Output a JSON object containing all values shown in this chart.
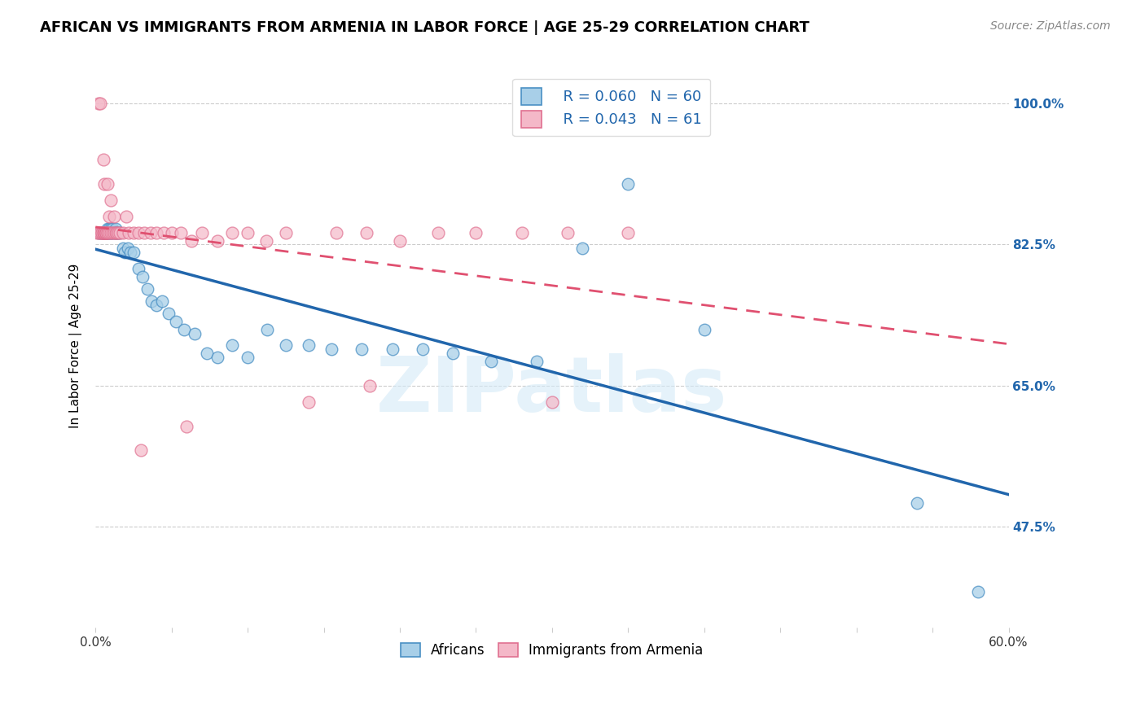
{
  "title": "AFRICAN VS IMMIGRANTS FROM ARMENIA IN LABOR FORCE | AGE 25-29 CORRELATION CHART",
  "source": "Source: ZipAtlas.com",
  "ylabel": "In Labor Force | Age 25-29",
  "xmin": 0.0,
  "xmax": 0.6,
  "ymin": 0.35,
  "ymax": 1.05,
  "yticks": [
    0.475,
    0.5,
    0.525,
    0.55,
    0.575,
    0.6,
    0.625,
    0.65,
    0.675,
    0.7,
    0.725,
    0.75,
    0.775,
    0.8,
    0.825,
    0.85,
    0.875,
    0.9,
    0.925,
    0.95,
    0.975,
    1.0
  ],
  "ytick_labels_right": [
    "47.5%",
    "",
    "",
    "",
    "",
    "",
    "",
    "65.0%",
    "",
    "",
    "",
    "",
    "",
    "",
    "82.5%",
    "",
    "",
    "",
    "",
    "",
    "",
    "100.0%"
  ],
  "xtick_positions": [
    0.0,
    0.05,
    0.1,
    0.15,
    0.2,
    0.25,
    0.3,
    0.35,
    0.4,
    0.45,
    0.5,
    0.55,
    0.6
  ],
  "xtick_labels": [
    "0.0%",
    "",
    "",
    "",
    "",
    "",
    "",
    "",
    "",
    "",
    "",
    "",
    "60.0%"
  ],
  "r_blue": 0.06,
  "n_blue": 60,
  "r_pink": 0.043,
  "n_pink": 61,
  "blue_scatter_color": "#a8cfe8",
  "blue_edge_color": "#4a90c4",
  "pink_scatter_color": "#f4b8c8",
  "pink_edge_color": "#e07090",
  "blue_line_color": "#2166ac",
  "pink_line_color": "#e05070",
  "legend_blue_label": "Africans",
  "legend_pink_label": "Immigrants from Armenia",
  "watermark": "ZIPatlas",
  "africans_x": [
    0.002,
    0.003,
    0.004,
    0.005,
    0.005,
    0.006,
    0.006,
    0.007,
    0.007,
    0.007,
    0.008,
    0.008,
    0.008,
    0.009,
    0.009,
    0.01,
    0.01,
    0.01,
    0.011,
    0.011,
    0.012,
    0.013,
    0.013,
    0.014,
    0.015,
    0.016,
    0.018,
    0.019,
    0.021,
    0.023,
    0.025,
    0.028,
    0.031,
    0.034,
    0.037,
    0.04,
    0.044,
    0.048,
    0.053,
    0.058,
    0.065,
    0.073,
    0.08,
    0.09,
    0.1,
    0.113,
    0.125,
    0.14,
    0.155,
    0.175,
    0.195,
    0.215,
    0.235,
    0.26,
    0.29,
    0.32,
    0.35,
    0.4,
    0.54,
    0.58
  ],
  "africans_y": [
    0.84,
    0.84,
    0.84,
    0.84,
    0.84,
    0.84,
    0.84,
    0.84,
    0.84,
    0.84,
    0.84,
    0.845,
    0.84,
    0.84,
    0.845,
    0.845,
    0.84,
    0.84,
    0.845,
    0.84,
    0.84,
    0.845,
    0.84,
    0.84,
    0.84,
    0.84,
    0.82,
    0.815,
    0.82,
    0.815,
    0.815,
    0.795,
    0.785,
    0.77,
    0.755,
    0.75,
    0.755,
    0.74,
    0.73,
    0.72,
    0.715,
    0.69,
    0.685,
    0.7,
    0.685,
    0.72,
    0.7,
    0.7,
    0.695,
    0.695,
    0.695,
    0.695,
    0.69,
    0.68,
    0.68,
    0.82,
    0.9,
    0.72,
    0.505,
    0.395
  ],
  "armenia_x": [
    0.001,
    0.002,
    0.002,
    0.003,
    0.003,
    0.004,
    0.004,
    0.005,
    0.005,
    0.005,
    0.006,
    0.006,
    0.006,
    0.007,
    0.007,
    0.007,
    0.008,
    0.008,
    0.008,
    0.009,
    0.009,
    0.01,
    0.01,
    0.011,
    0.012,
    0.012,
    0.013,
    0.014,
    0.015,
    0.016,
    0.018,
    0.02,
    0.022,
    0.025,
    0.028,
    0.032,
    0.036,
    0.04,
    0.045,
    0.05,
    0.056,
    0.063,
    0.07,
    0.08,
    0.09,
    0.1,
    0.112,
    0.125,
    0.14,
    0.158,
    0.178,
    0.2,
    0.225,
    0.25,
    0.28,
    0.31,
    0.35,
    0.3,
    0.18,
    0.06,
    0.03
  ],
  "armenia_y": [
    0.84,
    0.84,
    1.0,
    0.84,
    1.0,
    0.84,
    0.84,
    0.84,
    0.93,
    0.84,
    0.84,
    0.9,
    0.84,
    0.84,
    0.84,
    0.84,
    0.84,
    0.84,
    0.9,
    0.84,
    0.86,
    0.84,
    0.88,
    0.84,
    0.86,
    0.84,
    0.84,
    0.84,
    0.84,
    0.84,
    0.84,
    0.86,
    0.84,
    0.84,
    0.84,
    0.84,
    0.84,
    0.84,
    0.84,
    0.84,
    0.84,
    0.83,
    0.84,
    0.83,
    0.84,
    0.84,
    0.83,
    0.84,
    0.63,
    0.84,
    0.84,
    0.83,
    0.84,
    0.84,
    0.84,
    0.84,
    0.84,
    0.63,
    0.65,
    0.6,
    0.57
  ]
}
